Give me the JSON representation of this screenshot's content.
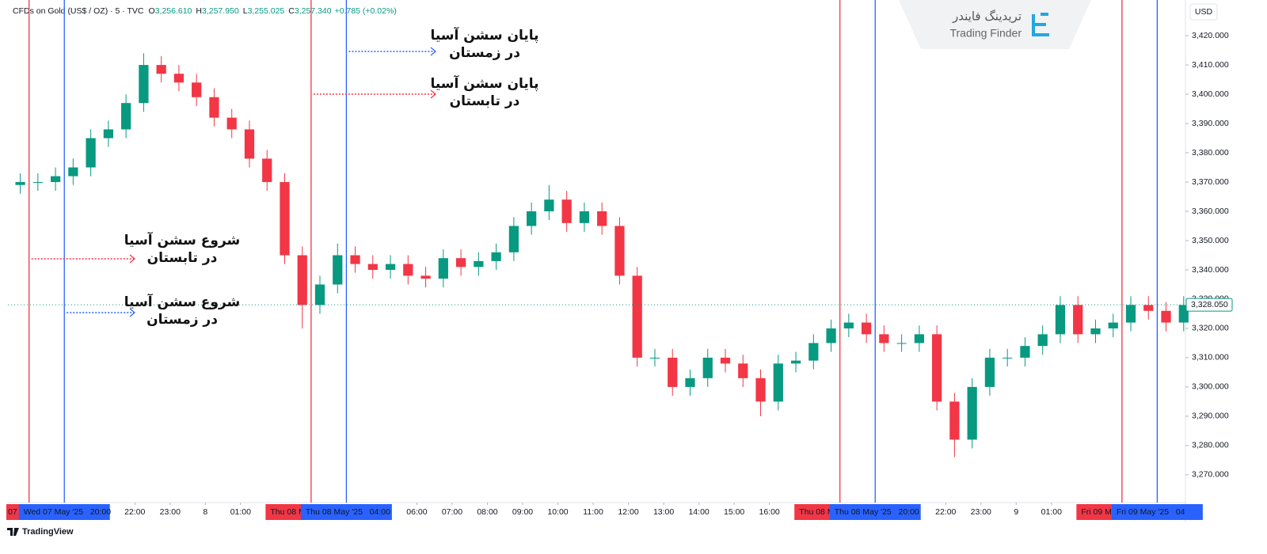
{
  "header": {
    "symbol": "CFDs on Gold (US$ / OZ) · 5 · TVC",
    "ohlc": [
      {
        "key": "O",
        "value": "3,256.610"
      },
      {
        "key": "H",
        "value": "3,257.950"
      },
      {
        "key": "L",
        "value": "3,255.025"
      },
      {
        "key": "C",
        "value": "3,257.340"
      }
    ],
    "change": "+0.785 (+0.02%)"
  },
  "watermark": {
    "name_fa": "تریدینگ فایندر",
    "name_en": "Trading Finder"
  },
  "currency": "USD",
  "footer_logo": "TradingView",
  "chart_data": {
    "type": "candlestick",
    "up_color": "#089981",
    "down_color": "#f23645",
    "xlim": [
      -0.2,
      66.6
    ],
    "ylim": [
      3260.5,
      3432.2
    ],
    "open": [
      3369,
      3370,
      3370,
      3372,
      3375,
      3385,
      3388,
      3397,
      3410,
      3407,
      3404,
      3399,
      3392,
      3388,
      3378,
      3370,
      3345,
      3328,
      3335,
      3345,
      3342,
      3340,
      3342,
      3338,
      3337,
      3344,
      3341,
      3343,
      3346,
      3355,
      3360,
      3364,
      3356,
      3360,
      3355,
      3338,
      3310,
      3310,
      3300,
      3303,
      3310,
      3308,
      3303,
      3295,
      3308,
      3309,
      3315,
      3320,
      3322,
      3318,
      3315,
      3315,
      3318,
      3295,
      3282,
      3300,
      3310,
      3310,
      3314,
      3318,
      3328,
      3318,
      3320,
      3322,
      3328,
      3326,
      3322
    ],
    "high": [
      3373,
      3373,
      3375,
      3378,
      3388,
      3391,
      3400,
      3414,
      3413,
      3410,
      3407,
      3402,
      3395,
      3391,
      3381,
      3373,
      3348,
      3338,
      3349,
      3348,
      3345,
      3345,
      3345,
      3341,
      3347,
      3347,
      3346,
      3349,
      3358,
      3363,
      3369,
      3367,
      3363,
      3363,
      3358,
      3341,
      3313,
      3313,
      3306,
      3313,
      3313,
      3311,
      3306,
      3311,
      3312,
      3318,
      3323,
      3325,
      3325,
      3321,
      3318,
      3321,
      3321,
      3298,
      3303,
      3313,
      3313,
      3317,
      3321,
      3331,
      3331,
      3323,
      3325,
      3331,
      3331,
      3329,
      3331
    ],
    "low": [
      3366,
      3367,
      3367,
      3369,
      3372,
      3382,
      3385,
      3394,
      3404,
      3401,
      3396,
      3389,
      3385,
      3375,
      3367,
      3342,
      3320,
      3325,
      3332,
      3339,
      3337,
      3337,
      3335,
      3334,
      3334,
      3338,
      3338,
      3340,
      3343,
      3352,
      3357,
      3353,
      3353,
      3352,
      3335,
      3307,
      3307,
      3297,
      3297,
      3300,
      3305,
      3300,
      3290,
      3292,
      3305,
      3306,
      3312,
      3317,
      3315,
      3312,
      3312,
      3312,
      3292,
      3276,
      3279,
      3297,
      3307,
      3307,
      3311,
      3315,
      3315,
      3315,
      3317,
      3319,
      3323,
      3319,
      3319
    ],
    "close": [
      3370,
      3370,
      3372,
      3375,
      3385,
      3388,
      3397,
      3410,
      3407,
      3404,
      3399,
      3392,
      3388,
      3378,
      3370,
      3345,
      3328,
      3335,
      3345,
      3342,
      3340,
      3342,
      3338,
      3337,
      3344,
      3341,
      3343,
      3346,
      3355,
      3360,
      3364,
      3356,
      3360,
      3355,
      3338,
      3310,
      3310,
      3300,
      3303,
      3310,
      3308,
      3303,
      3295,
      3308,
      3309,
      3315,
      3320,
      3322,
      3318,
      3315,
      3315,
      3318,
      3295,
      3282,
      3300,
      3310,
      3310,
      3314,
      3318,
      3328,
      3318,
      3320,
      3322,
      3328,
      3326,
      3322,
      3328
    ],
    "yticks": [
      {
        "value": 3270,
        "label": "3,270.000"
      },
      {
        "value": 3280,
        "label": "3,280.000"
      },
      {
        "value": 3290,
        "label": "3,290.000"
      },
      {
        "value": 3300,
        "label": "3,300.000"
      },
      {
        "value": 3310,
        "label": "3,310.000"
      },
      {
        "value": 3320,
        "label": "3,320.000"
      },
      {
        "value": 3330,
        "label": "3,330.000"
      },
      {
        "value": 3340,
        "label": "3,340.000"
      },
      {
        "value": 3350,
        "label": "3,350.000"
      },
      {
        "value": 3360,
        "label": "3,360.000"
      },
      {
        "value": 3370,
        "label": "3,370.000"
      },
      {
        "value": 3380,
        "label": "3,380.000"
      },
      {
        "value": 3390,
        "label": "3,390.000"
      },
      {
        "value": 3400,
        "label": "3,400.000"
      },
      {
        "value": 3410,
        "label": "3,410.000"
      },
      {
        "value": 3420,
        "label": "3,420.000"
      }
    ],
    "xticks": [
      {
        "value": 7,
        "label": "22:00"
      },
      {
        "value": 9,
        "label": "23:00"
      },
      {
        "value": 11,
        "label": "8"
      },
      {
        "value": 13,
        "label": "01:00"
      },
      {
        "value": 23,
        "label": "06:00"
      },
      {
        "value": 25,
        "label": "07:00"
      },
      {
        "value": 27,
        "label": "08:00"
      },
      {
        "value": 29,
        "label": "09:00"
      },
      {
        "value": 31,
        "label": "10:00"
      },
      {
        "value": 33,
        "label": "11:00"
      },
      {
        "value": 35,
        "label": "12:00"
      },
      {
        "value": 37,
        "label": "13:00"
      },
      {
        "value": 39,
        "label": "14:00"
      },
      {
        "value": 41,
        "label": "15:00"
      },
      {
        "value": 43,
        "label": "16:00"
      },
      {
        "value": 53,
        "label": "22:00"
      },
      {
        "value": 55,
        "label": "23:00"
      },
      {
        "value": 57,
        "label": "9"
      },
      {
        "value": 59,
        "label": "01:00"
      }
    ],
    "grid": false,
    "last_price": {
      "value": 3328.05,
      "label": "3,328.050"
    },
    "session_lines": [
      {
        "x": 1,
        "color": "#f23645",
        "label": "07"
      },
      {
        "x": 3,
        "color": "#2962ff",
        "label": "Wed 07 May '25   20:00"
      },
      {
        "x": 17,
        "color": "#f23645",
        "label": "Thu 08 M"
      },
      {
        "x": 19,
        "color": "#2962ff",
        "label": "Thu 08 May '25   04:00"
      },
      {
        "x": 47,
        "color": "#f23645",
        "label": "Thu 08 M"
      },
      {
        "x": 49,
        "color": "#2962ff",
        "label": "Thu 08 May '25   20:00"
      },
      {
        "x": 63,
        "color": "#f23645",
        "label": "Fri 09 M"
      },
      {
        "x": 65,
        "color": "#2962ff",
        "label": "Fri 09 May '25   04"
      }
    ],
    "annotations": [
      {
        "lines": [
          "پایان سشن آسیا",
          "در زمستان"
        ],
        "color": "#2962ff"
      },
      {
        "lines": [
          "پایان سشن آسیا",
          "در تابستان"
        ],
        "color": "#f23645"
      },
      {
        "lines": [
          "شروع سشن آسیا",
          "در تابستان"
        ],
        "color": "#f23645"
      },
      {
        "lines": [
          "شروع سشن آسیا",
          "در زمستان"
        ],
        "color": "#2962ff"
      }
    ]
  }
}
